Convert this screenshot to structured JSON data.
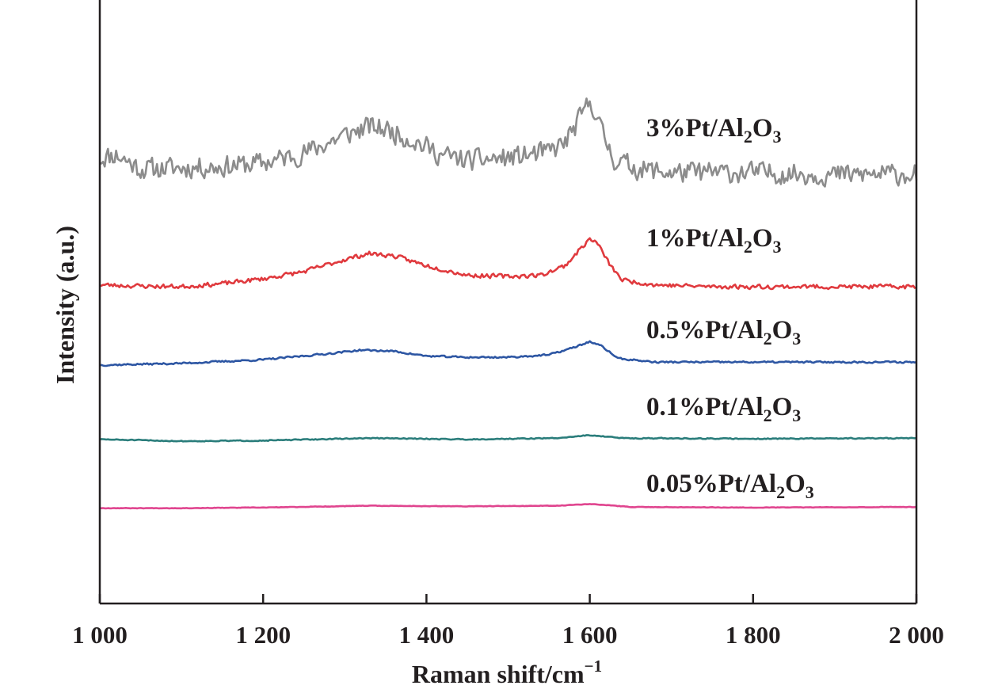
{
  "chart_data": {
    "type": "line",
    "title": "",
    "xlabel": "Raman shift/cm",
    "xlabel_sup": "−1",
    "ylabel": "Intensity (a.u.)",
    "xlim": [
      1000,
      2000
    ],
    "ylim": [
      0,
      100
    ],
    "x_ticks": [
      1000,
      1200,
      1400,
      1600,
      1800,
      2000
    ],
    "x_tick_labels": [
      "1 000",
      "1 200",
      "1 400",
      "1 600",
      "1 800",
      "2 000"
    ],
    "y_ticks": [],
    "grid": false,
    "legend": "inline labels at right of each trace",
    "series": [
      {
        "name": "3%Pt/Al₂O₃",
        "label": {
          "pre": "3%Pt/Al",
          "sub1": "2",
          "mid": "O",
          "sub2": "3"
        },
        "color": "#8c8c8c",
        "noise": 2.2,
        "seed": 11,
        "points": [
          [
            1000,
            73.8
          ],
          [
            1020,
            74.4
          ],
          [
            1050,
            72.0
          ],
          [
            1100,
            72.2
          ],
          [
            1150,
            72.4
          ],
          [
            1200,
            73.0
          ],
          [
            1250,
            74.6
          ],
          [
            1300,
            77.6
          ],
          [
            1330,
            79.0
          ],
          [
            1350,
            78.6
          ],
          [
            1380,
            77.0
          ],
          [
            1420,
            74.2
          ],
          [
            1450,
            73.4
          ],
          [
            1500,
            73.8
          ],
          [
            1550,
            74.8
          ],
          [
            1570,
            76.4
          ],
          [
            1585,
            79.6
          ],
          [
            1595,
            82.0
          ],
          [
            1600,
            83.0
          ],
          [
            1605,
            82.4
          ],
          [
            1615,
            78.0
          ],
          [
            1630,
            73.6
          ],
          [
            1660,
            72.0
          ],
          [
            1700,
            71.4
          ],
          [
            1800,
            71.4
          ],
          [
            1900,
            71.0
          ],
          [
            2000,
            71.2
          ]
        ]
      },
      {
        "name": "1%Pt/Al₂O₃",
        "label": {
          "pre": "1%Pt/Al",
          "sub1": "2",
          "mid": "O",
          "sub2": "3"
        },
        "color": "#e03a3e",
        "noise": 0.45,
        "seed": 23,
        "points": [
          [
            1000,
            52.8
          ],
          [
            1050,
            52.6
          ],
          [
            1100,
            52.5
          ],
          [
            1150,
            53.0
          ],
          [
            1200,
            53.8
          ],
          [
            1250,
            55.0
          ],
          [
            1300,
            57.0
          ],
          [
            1330,
            58.0
          ],
          [
            1360,
            57.6
          ],
          [
            1400,
            56.0
          ],
          [
            1450,
            54.4
          ],
          [
            1500,
            54.2
          ],
          [
            1540,
            54.4
          ],
          [
            1570,
            56.0
          ],
          [
            1590,
            59.0
          ],
          [
            1600,
            60.4
          ],
          [
            1610,
            59.6
          ],
          [
            1625,
            56.0
          ],
          [
            1640,
            53.6
          ],
          [
            1680,
            52.8
          ],
          [
            1750,
            52.5
          ],
          [
            1850,
            52.5
          ],
          [
            2000,
            52.5
          ]
        ]
      },
      {
        "name": "0.5%Pt/Al₂O₃",
        "label": {
          "pre": "0.5%Pt/Al",
          "sub1": "2",
          "mid": "O",
          "sub2": "3"
        },
        "color": "#2d56a3",
        "noise": 0.18,
        "seed": 37,
        "points": [
          [
            1000,
            39.5
          ],
          [
            1100,
            39.8
          ],
          [
            1200,
            40.4
          ],
          [
            1280,
            41.4
          ],
          [
            1320,
            42.0
          ],
          [
            1360,
            41.8
          ],
          [
            1400,
            41.0
          ],
          [
            1450,
            40.8
          ],
          [
            1500,
            40.8
          ],
          [
            1550,
            41.2
          ],
          [
            1580,
            42.4
          ],
          [
            1600,
            43.4
          ],
          [
            1615,
            42.6
          ],
          [
            1635,
            40.6
          ],
          [
            1680,
            40.0
          ],
          [
            1800,
            40.0
          ],
          [
            2000,
            40.0
          ]
        ]
      },
      {
        "name": "0.1%Pt/Al₂O₃",
        "label": {
          "pre": "0.1%Pt/Al",
          "sub1": "2",
          "mid": "O",
          "sub2": "3"
        },
        "color": "#2a7d7b",
        "noise": 0.1,
        "seed": 51,
        "points": [
          [
            1000,
            27.2
          ],
          [
            1100,
            26.9
          ],
          [
            1200,
            27.0
          ],
          [
            1330,
            27.4
          ],
          [
            1450,
            27.2
          ],
          [
            1560,
            27.4
          ],
          [
            1600,
            27.9
          ],
          [
            1640,
            27.4
          ],
          [
            1800,
            27.3
          ],
          [
            2000,
            27.4
          ]
        ]
      },
      {
        "name": "0.05%Pt/Al₂O₃",
        "label": {
          "pre": "0.05%Pt/Al",
          "sub1": "2",
          "mid": "O",
          "sub2": "3"
        },
        "color": "#e0458f",
        "noise": 0.05,
        "seed": 67,
        "points": [
          [
            1000,
            15.8
          ],
          [
            1100,
            15.8
          ],
          [
            1200,
            15.9
          ],
          [
            1330,
            16.2
          ],
          [
            1450,
            16.1
          ],
          [
            1560,
            16.2
          ],
          [
            1600,
            16.5
          ],
          [
            1650,
            16.0
          ],
          [
            1800,
            15.9
          ],
          [
            2000,
            16.0
          ]
        ]
      }
    ]
  }
}
